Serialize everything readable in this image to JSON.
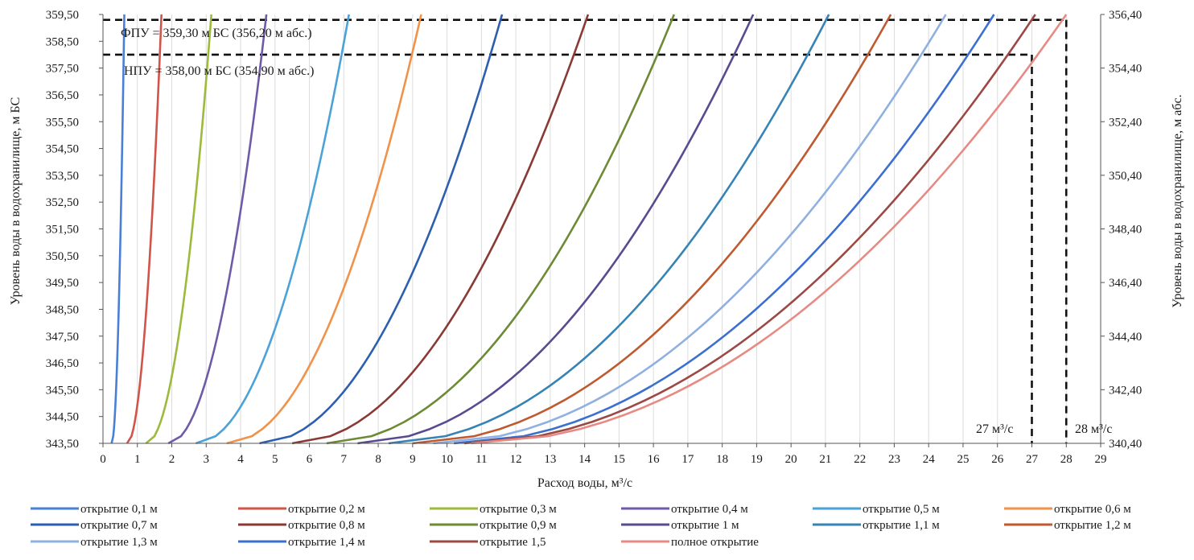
{
  "chart_data": {
    "type": "line",
    "xlabel": "Расход воды, м³/с",
    "ylabel": "Уровень воды в водохранилище, м БС",
    "y2label": "Уровень воды в водохранилище, м абс.",
    "xlim": [
      0,
      29
    ],
    "ylim": [
      343.5,
      359.5
    ],
    "y2lim": [
      340.4,
      356.4
    ],
    "x_ticks": [
      "0",
      "1",
      "2",
      "3",
      "4",
      "5",
      "6",
      "7",
      "8",
      "9",
      "10",
      "11",
      "12",
      "13",
      "14",
      "15",
      "16",
      "17",
      "18",
      "19",
      "20",
      "21",
      "22",
      "23",
      "24",
      "25",
      "26",
      "27",
      "28",
      "29"
    ],
    "y_ticks": [
      "343,50",
      "344,50",
      "345,50",
      "346,50",
      "347,50",
      "348,50",
      "349,50",
      "350,50",
      "351,50",
      "352,50",
      "353,50",
      "354,50",
      "355,50",
      "356,50",
      "357,50",
      "358,50",
      "359,50"
    ],
    "y2_ticks": [
      "340,40",
      "342,40",
      "344,40",
      "346,40",
      "348,40",
      "350,40",
      "352,40",
      "354,40",
      "356,40"
    ],
    "grid": "vertical",
    "legend_position": "bottom",
    "series": [
      {
        "name": "открытие 0,1 м",
        "color": "#4a7fd6",
        "q_min": 0.25,
        "q_max": 0.62
      },
      {
        "name": "открытие 0,2 м",
        "color": "#d0544a",
        "q_min": 0.7,
        "q_max": 1.7
      },
      {
        "name": "открытие 0,3 м",
        "color": "#9cba3c",
        "q_min": 1.25,
        "q_max": 3.15
      },
      {
        "name": "открытие 0,4 м",
        "color": "#6f5aa8",
        "q_min": 1.9,
        "q_max": 4.75
      },
      {
        "name": "открытие 0,5 м",
        "color": "#4aa2d8",
        "q_min": 2.7,
        "q_max": 7.15
      },
      {
        "name": "открытие 0,6 м",
        "color": "#f0924a",
        "q_min": 3.6,
        "q_max": 9.25
      },
      {
        "name": "открытие 0,7 м",
        "color": "#2d5fb0",
        "q_min": 4.55,
        "q_max": 11.6
      },
      {
        "name": "открытие 0,8 м",
        "color": "#8a3a35",
        "q_min": 5.5,
        "q_max": 14.1
      },
      {
        "name": "открытие 0,9 м",
        "color": "#6d8a35",
        "q_min": 6.5,
        "q_max": 16.6
      },
      {
        "name": "открытие 1 м",
        "color": "#5a4a90",
        "q_min": 7.4,
        "q_max": 18.9
      },
      {
        "name": "открытие 1,1 м",
        "color": "#3683b5",
        "q_min": 8.3,
        "q_max": 21.1
      },
      {
        "name": "открытие 1,2 м",
        "color": "#bf5a30",
        "q_min": 9.0,
        "q_max": 22.9
      },
      {
        "name": "открытие 1,3 м",
        "color": "#8fb0e0",
        "q_min": 9.6,
        "q_max": 24.5
      },
      {
        "name": "открытие 1,4 м",
        "color": "#3b6fd0",
        "q_min": 10.2,
        "q_max": 25.9
      },
      {
        "name": "открытие 1,5",
        "color": "#9c4845",
        "q_min": 10.5,
        "q_max": 27.1
      },
      {
        "name": "полное открытие",
        "color": "#e88a84",
        "q_min": 10.7,
        "q_max": 28.0
      }
    ],
    "reference_lines": [
      {
        "label": "ФПУ = 359,30 м БС (356,20 м абс.)",
        "level": 359.3,
        "discharge": 28
      },
      {
        "label": "НПУ = 358,00 м БС (354,90 м абс.)",
        "level": 358.0,
        "discharge": 27
      }
    ],
    "annotations": [
      "27 м³/с",
      "28 м³/с"
    ]
  }
}
